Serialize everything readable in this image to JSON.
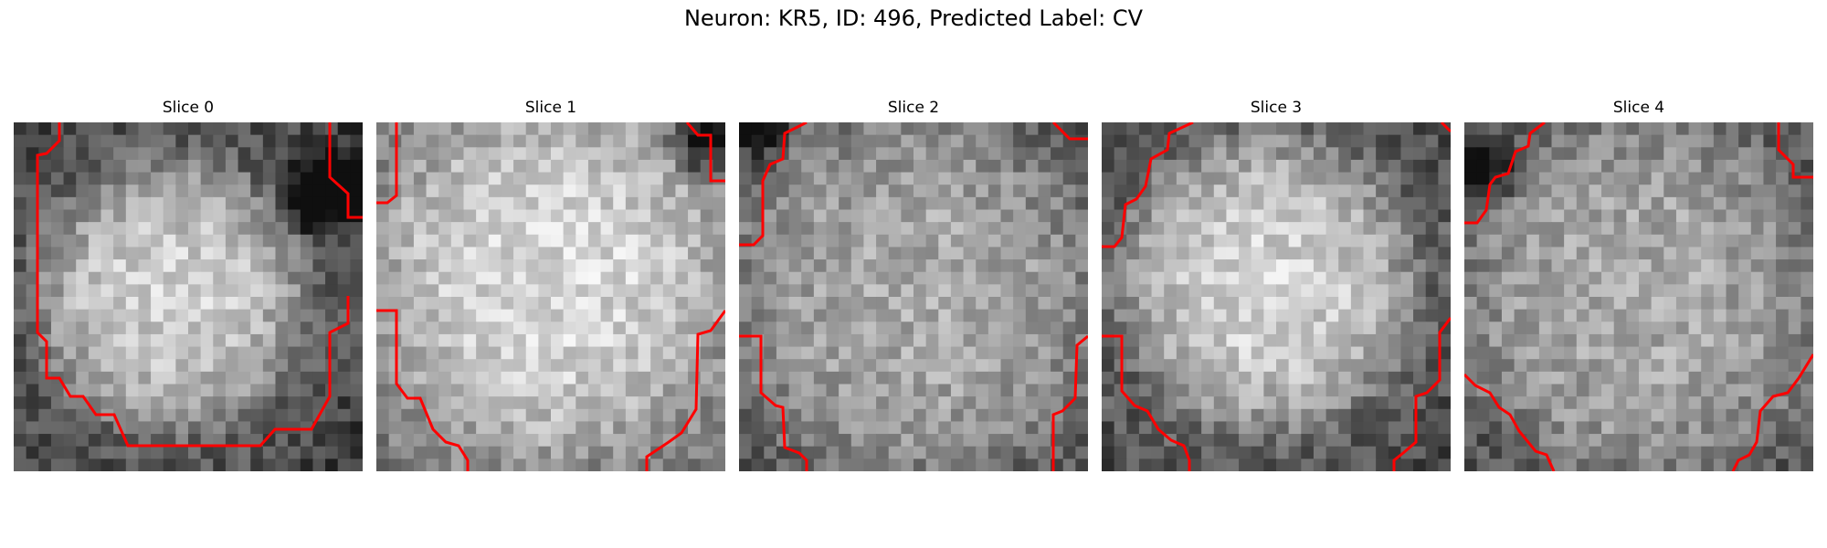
{
  "figure": {
    "title": "Neuron: KR5, ID: 496, Predicted Label: CV",
    "colormap": "gray",
    "contour_color": "#ff0000",
    "slices": [
      {
        "label": "Slice 0"
      },
      {
        "label": "Slice 1"
      },
      {
        "label": "Slice 2"
      },
      {
        "label": "Slice 3"
      },
      {
        "label": "Slice 4"
      }
    ]
  }
}
